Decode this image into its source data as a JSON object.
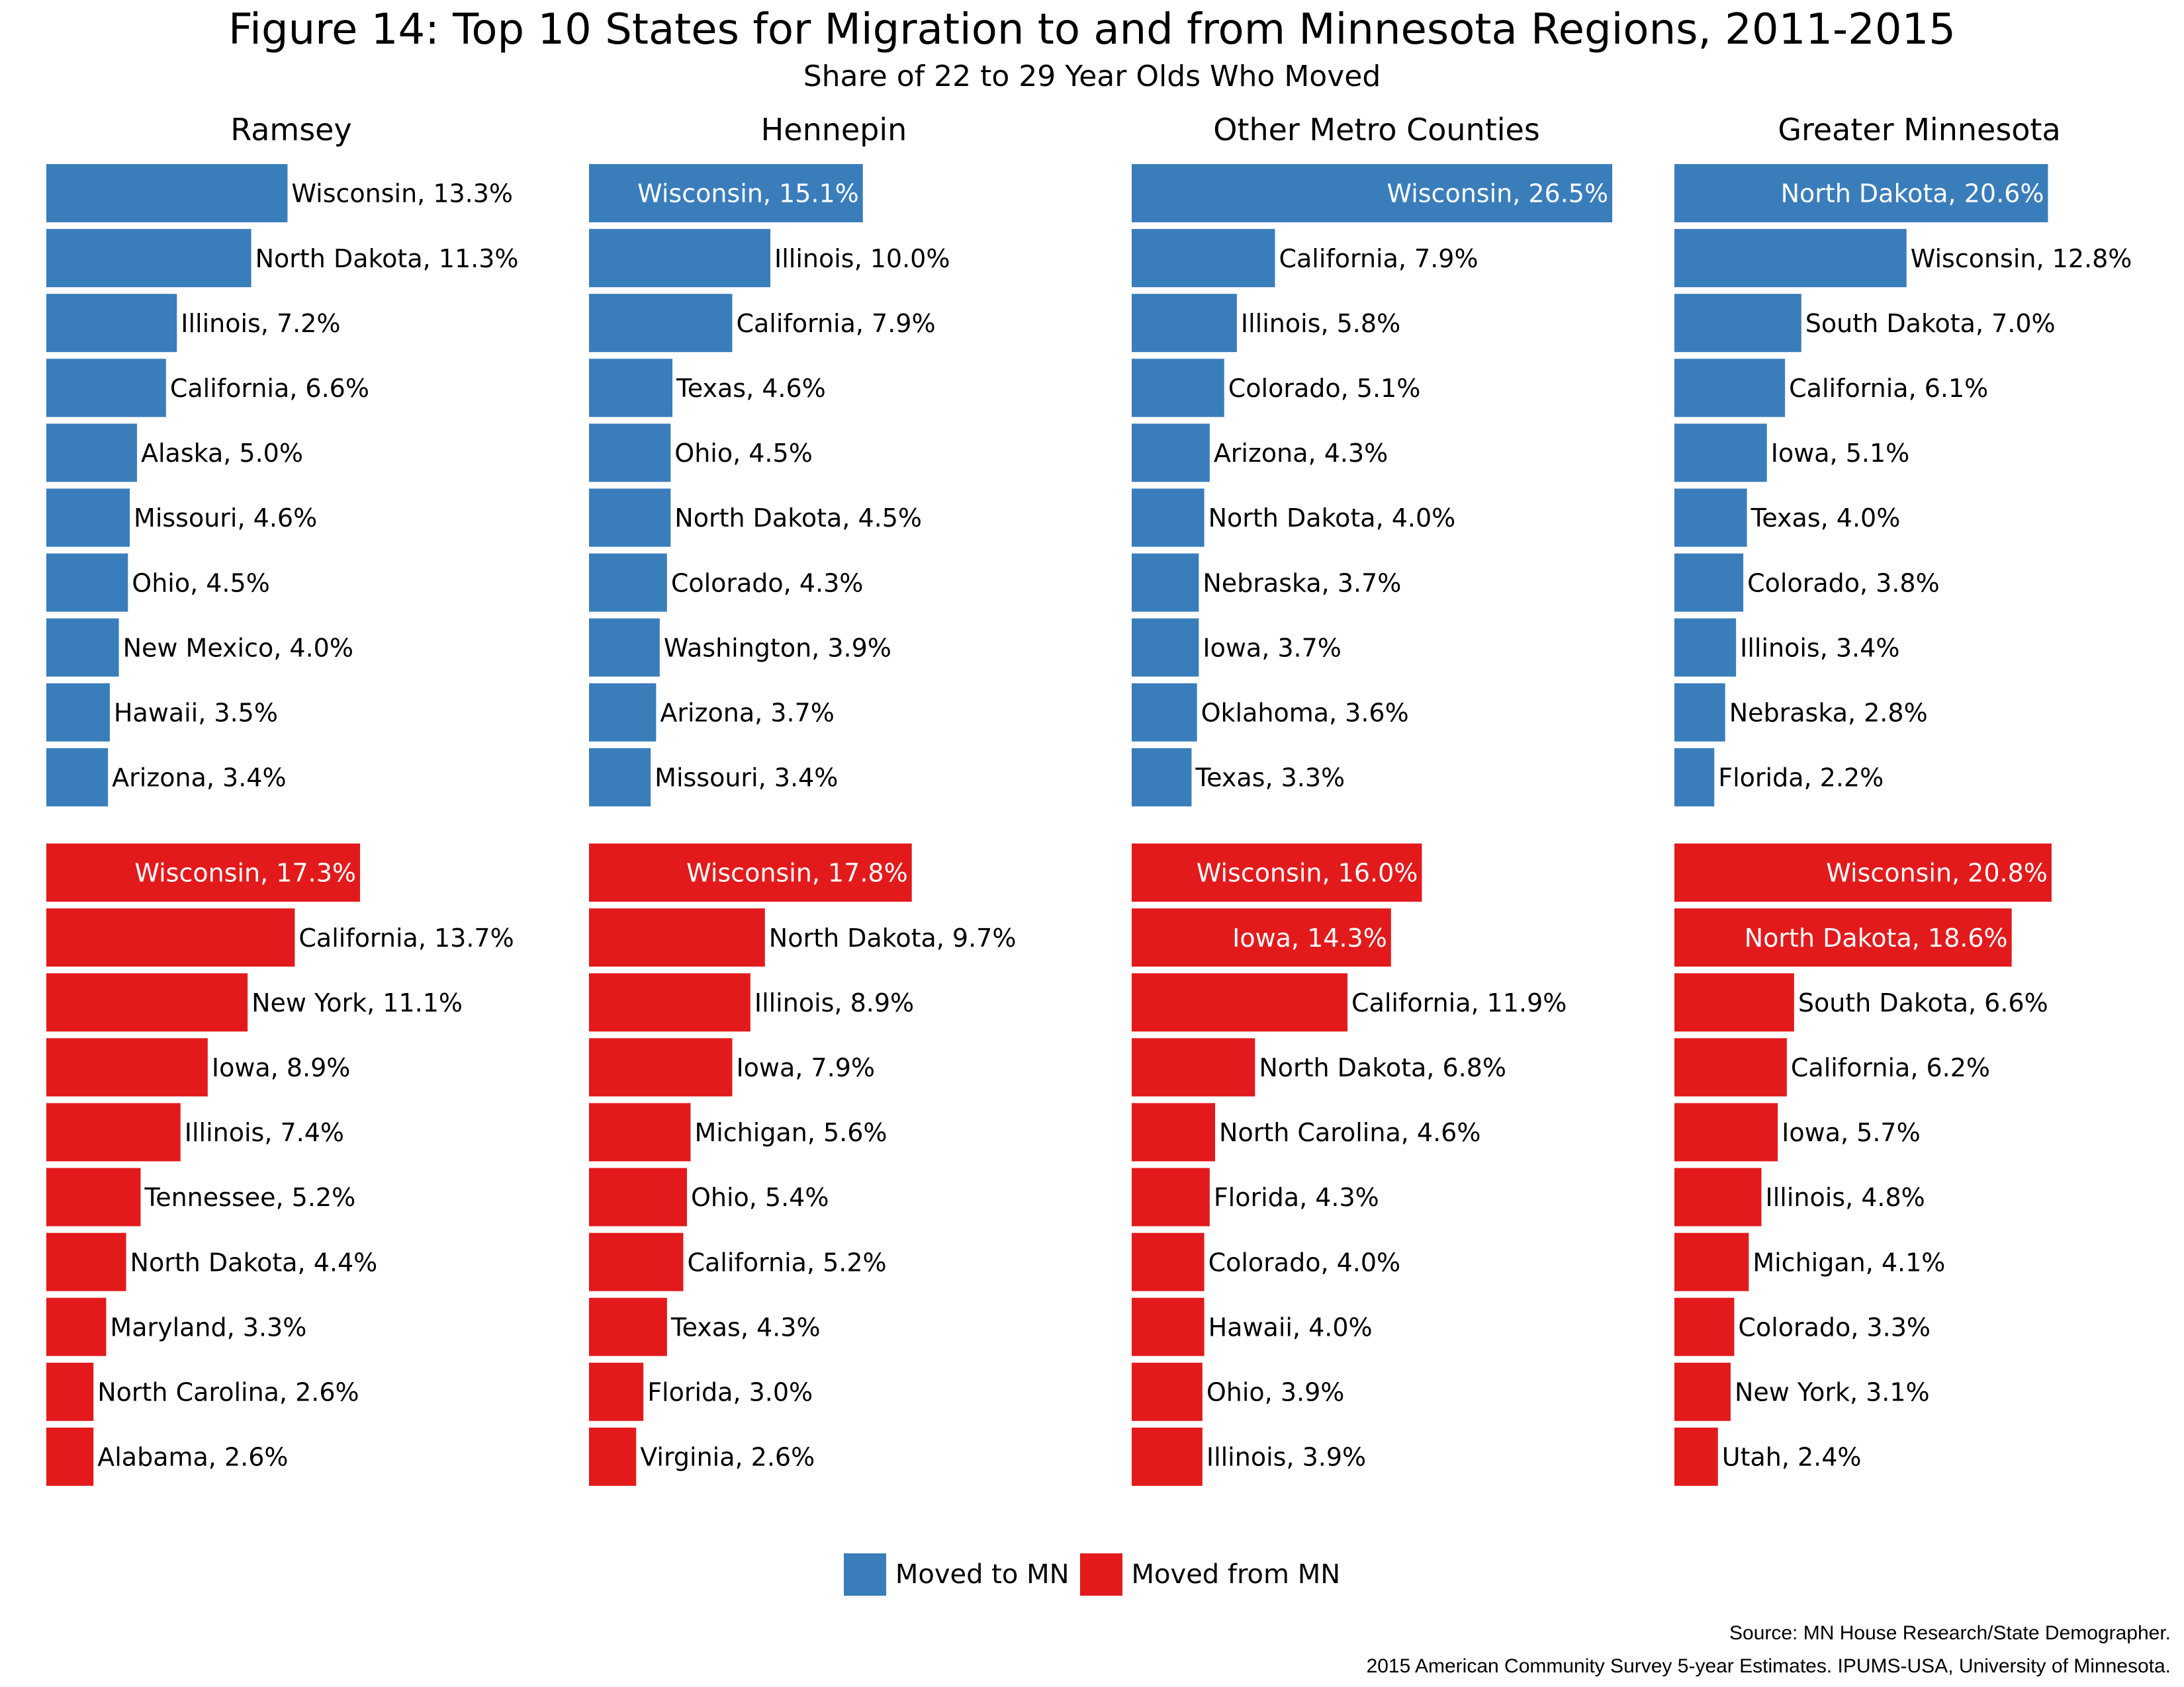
{
  "header": {
    "title": "Figure 14: Top 10 States for Migration to and from Minnesota Regions, 2011-2015",
    "subtitle": "Share of 22 to 29 Year Olds Who Moved"
  },
  "legend": {
    "to_label": "Moved to MN",
    "from_label": "Moved from MN"
  },
  "colors": {
    "to": "#3a7dbb",
    "from": "#e31a1c"
  },
  "source": {
    "line1": "Source: MN House Research/State Demographer.",
    "line2": "2015 American Community Survey 5-year Estimates. IPUMS-USA, University of Minnesota."
  },
  "chart_data": [
    {
      "type": "bar",
      "orientation": "horizontal",
      "panel": "Ramsey",
      "series": [
        {
          "name": "Moved to MN",
          "categories": [
            "Wisconsin",
            "North Dakota",
            "Illinois",
            "California",
            "Alaska",
            "Missouri",
            "Ohio",
            "New Mexico",
            "Hawaii",
            "Arizona"
          ],
          "labels": [
            "Wisconsin, 13.3%",
            "North Dakota, 11.3%",
            "Illinois,  7.2%",
            "California,  6.6%",
            "Alaska,  5.0%",
            "Missouri,  4.6%",
            "Ohio,  4.5%",
            "New Mexico,  4.0%",
            "Hawaii,  3.5%",
            "Arizona,  3.4%"
          ],
          "values": [
            13.3,
            11.3,
            7.2,
            6.6,
            5.0,
            4.6,
            4.5,
            4.0,
            3.5,
            3.4
          ]
        },
        {
          "name": "Moved from MN",
          "categories": [
            "Wisconsin",
            "California",
            "New York",
            "Iowa",
            "Illinois",
            "Tennessee",
            "North Dakota",
            "Maryland",
            "North Carolina",
            "Alabama"
          ],
          "labels": [
            "Wisconsin, 17.3%",
            "California, 13.7%",
            "New York, 11.1%",
            "Iowa,  8.9%",
            "Illinois,  7.4%",
            "Tennessee,  5.2%",
            "North Dakota,  4.4%",
            "Maryland,  3.3%",
            "North Carolina,  2.6%",
            "Alabama,  2.6%"
          ],
          "values": [
            17.3,
            13.7,
            11.1,
            8.9,
            7.4,
            5.2,
            4.4,
            3.3,
            2.6,
            2.6
          ]
        }
      ]
    },
    {
      "type": "bar",
      "orientation": "horizontal",
      "panel": "Hennepin",
      "series": [
        {
          "name": "Moved to MN",
          "categories": [
            "Wisconsin",
            "Illinois",
            "California",
            "Texas",
            "Ohio",
            "North Dakota",
            "Colorado",
            "Washington",
            "Arizona",
            "Missouri"
          ],
          "labels": [
            "Wisconsin, 15.1%",
            "Illinois, 10.0%",
            "California,  7.9%",
            "Texas,  4.6%",
            "Ohio,  4.5%",
            "North Dakota,  4.5%",
            "Colorado,  4.3%",
            "Washington,  3.9%",
            "Arizona,  3.7%",
            "Missouri,  3.4%"
          ],
          "values": [
            15.1,
            10.0,
            7.9,
            4.6,
            4.5,
            4.5,
            4.3,
            3.9,
            3.7,
            3.4
          ]
        },
        {
          "name": "Moved from MN",
          "categories": [
            "Wisconsin",
            "North Dakota",
            "Illinois",
            "Iowa",
            "Michigan",
            "Ohio",
            "California",
            "Texas",
            "Florida",
            "Virginia"
          ],
          "labels": [
            "Wisconsin, 17.8%",
            "North Dakota,  9.7%",
            "Illinois,  8.9%",
            "Iowa,  7.9%",
            "Michigan,  5.6%",
            "Ohio,  5.4%",
            "California,  5.2%",
            "Texas,  4.3%",
            "Florida,  3.0%",
            "Virginia,  2.6%"
          ],
          "values": [
            17.8,
            9.7,
            8.9,
            7.9,
            5.6,
            5.4,
            5.2,
            4.3,
            3.0,
            2.6
          ]
        }
      ]
    },
    {
      "type": "bar",
      "orientation": "horizontal",
      "panel": "Other Metro Counties",
      "series": [
        {
          "name": "Moved to MN",
          "categories": [
            "Wisconsin",
            "California",
            "Illinois",
            "Colorado",
            "Arizona",
            "North Dakota",
            "Nebraska",
            "Iowa",
            "Oklahoma",
            "Texas"
          ],
          "labels": [
            "Wisconsin, 26.5%",
            "California,  7.9%",
            "Illinois,  5.8%",
            "Colorado,  5.1%",
            "Arizona,  4.3%",
            "North Dakota,  4.0%",
            "Nebraska,  3.7%",
            "Iowa,  3.7%",
            "Oklahoma,  3.6%",
            "Texas,  3.3%"
          ],
          "values": [
            26.5,
            7.9,
            5.8,
            5.1,
            4.3,
            4.0,
            3.7,
            3.7,
            3.6,
            3.3
          ]
        },
        {
          "name": "Moved from MN",
          "categories": [
            "Wisconsin",
            "Iowa",
            "California",
            "North Dakota",
            "North Carolina",
            "Florida",
            "Colorado",
            "Hawaii",
            "Ohio",
            "Illinois"
          ],
          "labels": [
            "Wisconsin, 16.0%",
            "Iowa, 14.3%",
            "California, 11.9%",
            "North Dakota,  6.8%",
            "North Carolina,  4.6%",
            "Florida,  4.3%",
            "Colorado,  4.0%",
            "Hawaii,  4.0%",
            "Ohio,  3.9%",
            "Illinois,  3.9%"
          ],
          "values": [
            16.0,
            14.3,
            11.9,
            6.8,
            4.6,
            4.3,
            4.0,
            4.0,
            3.9,
            3.9
          ]
        }
      ]
    },
    {
      "type": "bar",
      "orientation": "horizontal",
      "panel": "Greater Minnesota",
      "series": [
        {
          "name": "Moved to MN",
          "categories": [
            "North Dakota",
            "Wisconsin",
            "South Dakota",
            "California",
            "Iowa",
            "Texas",
            "Colorado",
            "Illinois",
            "Nebraska",
            "Florida"
          ],
          "labels": [
            "North Dakota, 20.6%",
            "Wisconsin, 12.8%",
            "South Dakota,  7.0%",
            "California,  6.1%",
            "Iowa,  5.1%",
            "Texas,  4.0%",
            "Colorado,  3.8%",
            "Illinois,  3.4%",
            "Nebraska,  2.8%",
            "Florida,  2.2%"
          ],
          "values": [
            20.6,
            12.8,
            7.0,
            6.1,
            5.1,
            4.0,
            3.8,
            3.4,
            2.8,
            2.2
          ]
        },
        {
          "name": "Moved from MN",
          "categories": [
            "Wisconsin",
            "North Dakota",
            "South Dakota",
            "California",
            "Iowa",
            "Illinois",
            "Michigan",
            "Colorado",
            "New York",
            "Utah"
          ],
          "labels": [
            "Wisconsin, 20.8%",
            "North Dakota, 18.6%",
            "South Dakota,  6.6%",
            "California,  6.2%",
            "Iowa,  5.7%",
            "Illinois,  4.8%",
            "Michigan,  4.1%",
            "Colorado,  3.3%",
            "New York,  3.1%",
            "Utah,  2.4%"
          ],
          "values": [
            20.8,
            18.6,
            6.6,
            6.2,
            5.7,
            4.8,
            4.1,
            3.3,
            3.1,
            2.4
          ]
        }
      ]
    }
  ]
}
